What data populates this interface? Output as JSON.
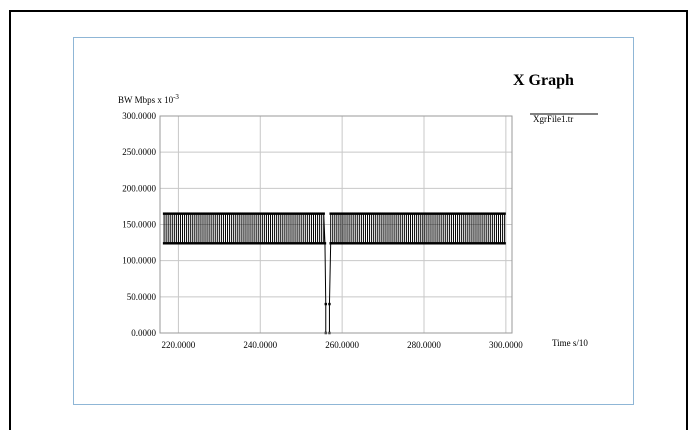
{
  "chart_data": {
    "type": "line",
    "title": "X Graph",
    "ylabel": "BW Mbps x 10",
    "ylabel_exponent": "-3",
    "xlabel": "Time s/10",
    "x_ticks": [
      "220.0000",
      "240.0000",
      "260.0000",
      "280.0000",
      "300.0000"
    ],
    "x_tick_values": [
      220,
      240,
      260,
      280,
      300
    ],
    "y_ticks": [
      "0.0000",
      "50.0000",
      "100.0000",
      "150.0000",
      "200.0000",
      "250.0000",
      "300.0000"
    ],
    "y_tick_values": [
      0,
      50,
      100,
      150,
      200,
      250,
      300
    ],
    "xlim": [
      215.5,
      301.5
    ],
    "ylim": [
      0,
      300
    ],
    "grid": true,
    "legend_position": "top-right",
    "series": [
      {
        "name": "XgrFile1.tr",
        "color": "#000000",
        "segments": [
          {
            "x_start": 216.5,
            "x_end": 255.8,
            "x_step": 0.5,
            "values_alternating": [
              124,
              165
            ]
          },
          {
            "x_start": 257.2,
            "x_end": 300.0,
            "x_step": 0.5,
            "values_alternating": [
              124,
              165
            ]
          }
        ],
        "dip": [
          {
            "x": 255.8,
            "y": 124
          },
          {
            "x": 256.0,
            "y": 40
          },
          {
            "x": 256.0,
            "y": 0
          },
          {
            "x": 256.9,
            "y": 0
          },
          {
            "x": 256.9,
            "y": 40
          },
          {
            "x": 257.2,
            "y": 124
          }
        ]
      }
    ]
  }
}
